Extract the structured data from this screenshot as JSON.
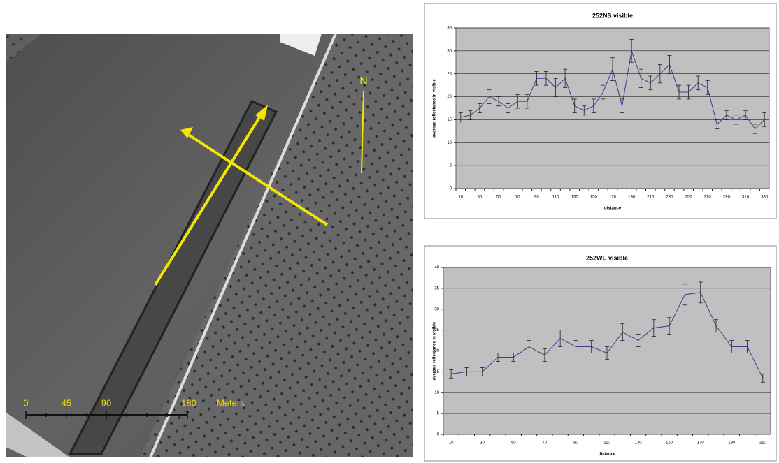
{
  "image": {
    "north_label": "N",
    "scale_labels": [
      "0",
      "45",
      "90",
      "180"
    ],
    "scale_unit": "Meters"
  },
  "chart_data": [
    {
      "type": "line",
      "title": "252NS visible",
      "x_label": "distance",
      "y_label": "average reflectance in visible",
      "categories": [
        "10",
        null,
        "30",
        null,
        "50",
        null,
        "70",
        null,
        "90",
        null,
        "110",
        null,
        "130",
        null,
        "150",
        null,
        "170",
        null,
        "190",
        null,
        "210",
        null,
        "230",
        null,
        "250",
        null,
        "270",
        null,
        "290",
        null,
        "310",
        null,
        "330"
      ],
      "values": [
        15.5,
        16,
        17.5,
        20,
        19,
        17.5,
        19,
        19,
        24,
        24,
        22,
        24,
        18,
        17,
        18,
        21,
        26,
        18,
        30,
        24,
        23,
        25,
        27,
        21,
        21,
        23,
        22,
        14,
        16,
        15,
        16,
        13,
        15
      ],
      "errors": [
        1,
        1,
        1,
        1.5,
        1,
        1,
        1.5,
        1.5,
        1.5,
        1.5,
        2,
        2,
        1.5,
        1,
        1.5,
        1.5,
        2.5,
        1.5,
        2.5,
        2,
        1.5,
        2,
        2,
        1.5,
        1.5,
        1.5,
        1.5,
        1,
        1,
        1,
        1,
        1,
        1.5
      ],
      "color": "#3b3b8f",
      "ylim": [
        0,
        35
      ],
      "yticks": [
        0,
        5,
        10,
        15,
        20,
        25,
        30,
        35
      ],
      "grid": true
    },
    {
      "type": "line",
      "title": "252WE visible",
      "x_label": "distance",
      "y_label": "average reflectance in visible",
      "categories": [
        "10",
        null,
        "30",
        null,
        "50",
        null,
        "70",
        null,
        "90",
        null,
        "110",
        null,
        "130",
        null,
        "150",
        null,
        "170",
        null,
        "190",
        null,
        "210"
      ],
      "values": [
        14.5,
        15,
        15,
        18.5,
        18.5,
        21,
        19,
        23,
        21,
        21,
        19.5,
        24.5,
        22.5,
        25.5,
        26,
        33.5,
        34,
        26,
        21,
        21,
        13.5
      ],
      "errors": [
        1,
        1,
        1,
        1,
        1,
        1.5,
        1.5,
        2,
        1.5,
        1.5,
        1.5,
        2,
        1.5,
        2,
        2,
        2.5,
        2.5,
        1.5,
        1.5,
        1.5,
        1
      ],
      "color": "#3b3b8f",
      "ylim": [
        0,
        40
      ],
      "yticks": [
        0,
        5,
        10,
        15,
        20,
        25,
        30,
        35,
        40
      ],
      "grid": true
    }
  ]
}
